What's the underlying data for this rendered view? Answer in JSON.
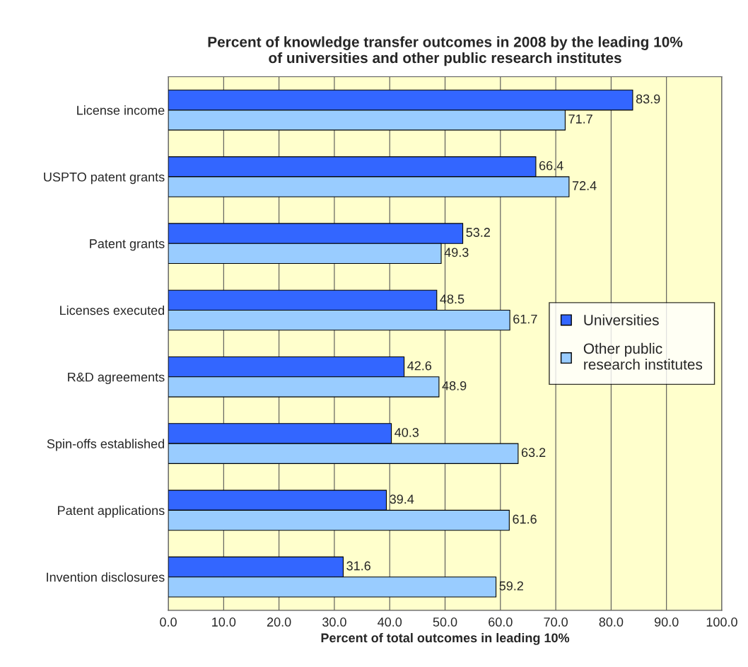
{
  "chart_data": {
    "type": "bar",
    "orientation": "horizontal",
    "title": "Percent of knowledge transfer outcomes in 2008 by the leading 10%\nof universities and other public research institutes",
    "xlabel": "Percent of total outcomes in leading 10%",
    "categories": [
      "License income",
      "USPTO patent grants",
      "Patent grants",
      "Licenses executed",
      "R&D agreements",
      "Spin-offs established",
      "Patent applications",
      "Invention disclosures"
    ],
    "series": [
      {
        "name": "Universities",
        "color": "#3366ff",
        "values": [
          83.9,
          66.4,
          53.2,
          48.5,
          42.6,
          40.3,
          39.4,
          31.6
        ]
      },
      {
        "name": "Other public\nresearch institutes",
        "color": "#99ccff",
        "values": [
          71.7,
          72.4,
          49.3,
          61.7,
          48.9,
          63.2,
          61.6,
          59.2
        ]
      }
    ],
    "xlim": [
      0,
      100
    ],
    "xticks": [
      {
        "value": 0,
        "label": "0.0"
      },
      {
        "value": 10,
        "label": "10.0"
      },
      {
        "value": 20,
        "label": "20.0"
      },
      {
        "value": 30,
        "label": "30.0"
      },
      {
        "value": 40,
        "label": "40.0"
      },
      {
        "value": 50,
        "label": "50.0"
      },
      {
        "value": 60,
        "label": "60.0"
      },
      {
        "value": 70,
        "label": "70.0"
      },
      {
        "value": 80,
        "label": "80.0"
      },
      {
        "value": 90,
        "label": "90.0"
      },
      {
        "value": 100,
        "label": "100.0"
      }
    ],
    "grid": "x",
    "legend": "right",
    "data_labels": true
  }
}
